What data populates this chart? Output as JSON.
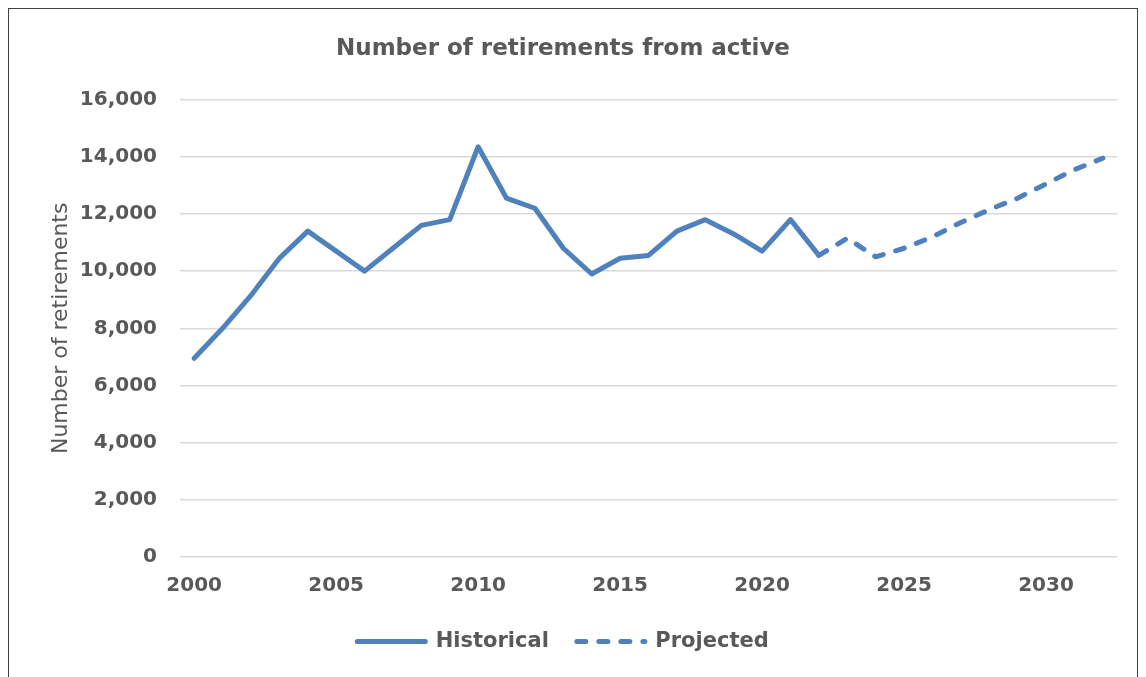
{
  "chart_data": {
    "type": "line",
    "title": "Number of retirements from active",
    "ylabel": "Number of retirements",
    "categories": [
      "2000",
      null,
      null,
      null,
      null,
      "2005",
      null,
      null,
      null,
      null,
      "2010",
      null,
      null,
      null,
      null,
      "2015",
      null,
      null,
      null,
      null,
      "2020",
      null,
      null,
      null,
      null,
      "2025",
      null,
      null,
      null,
      null,
      "2030",
      null,
      null
    ],
    "series": [
      {
        "name": "Historical",
        "color": "#4f81bd",
        "line_style": "solid",
        "values": [
          6950,
          8000,
          9150,
          10450,
          11400,
          10700,
          10000,
          10800,
          11600,
          11800,
          14350,
          12550,
          12200,
          10800,
          9900,
          10450,
          10550,
          11400,
          11800,
          11300,
          10700,
          11800,
          10550,
          null,
          null,
          null,
          null,
          null,
          null,
          null,
          null,
          null,
          null
        ]
      },
      {
        "name": "Projected",
        "color": "#4f81bd",
        "line_style": "dashed",
        "values": [
          null,
          null,
          null,
          null,
          null,
          null,
          null,
          null,
          null,
          null,
          null,
          null,
          null,
          null,
          null,
          null,
          null,
          null,
          null,
          null,
          null,
          null,
          10550,
          11150,
          10500,
          10800,
          11200,
          11700,
          12150,
          12550,
          13050,
          13550,
          13950
        ]
      }
    ],
    "ylim": [
      0,
      16000
    ],
    "yticks": [
      0,
      {
        "value": 2000,
        "label": "2,000"
      },
      {
        "value": 4000,
        "label": "4,000"
      },
      {
        "value": 6000,
        "label": "6,000"
      },
      {
        "value": 8000,
        "label": "8,000"
      },
      {
        "value": 10000,
        "label": "10,000"
      },
      {
        "value": 12000,
        "label": "12,000"
      },
      {
        "value": 14000,
        "label": "14,000"
      },
      {
        "value": 16000,
        "label": "16,000"
      }
    ],
    "grid": "y",
    "legend": "bottom",
    "marker": "none"
  }
}
